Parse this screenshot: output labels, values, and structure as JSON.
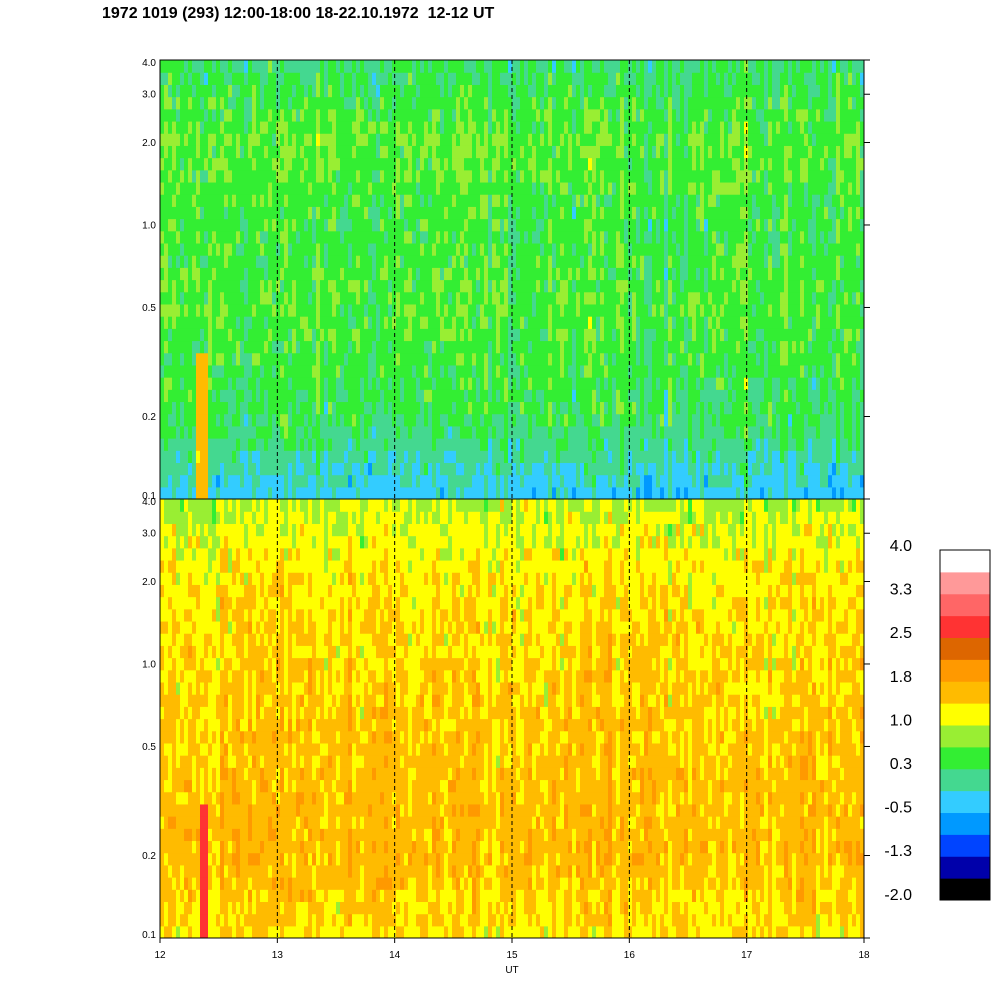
{
  "title": "1972 1019 (293) 12:00-18:00 18-22.10.1972  12-12 UT",
  "chart_data": [
    {
      "type": "heatmap",
      "panel": "upper",
      "x": {
        "label": "",
        "range": [
          12,
          18
        ],
        "ticks": []
      },
      "y": {
        "scale": "log",
        "range": [
          0.1,
          4.0
        ],
        "ticks": [
          0.1,
          0.2,
          0.5,
          1.0,
          2.0,
          3.0,
          4.0
        ],
        "tick_labels": [
          "0.1",
          "0.2",
          "0.5",
          "1.0",
          "2.0",
          "3.0",
          "4.0"
        ]
      },
      "vertical_markers": [
        13,
        14,
        15,
        16,
        17
      ],
      "typical_level_by_y": [
        {
          "y": 0.1,
          "value": -0.3
        },
        {
          "y": 0.2,
          "value": 0.3
        },
        {
          "y": 0.5,
          "value": 0.5
        },
        {
          "y": 1.0,
          "value": 0.4
        },
        {
          "y": 2.0,
          "value": 0.6
        },
        {
          "y": 4.0,
          "value": 0.2
        }
      ],
      "features": [
        {
          "x_start": 12.32,
          "x_end": 12.42,
          "y_max": 0.35,
          "value": 1.5
        }
      ]
    },
    {
      "type": "heatmap",
      "panel": "lower",
      "x": {
        "label": "UT",
        "range": [
          12,
          18
        ],
        "ticks": [
          12,
          13,
          14,
          15,
          16,
          17,
          18
        ],
        "tick_labels": [
          "12",
          "13",
          "14",
          "15",
          "16",
          "17",
          "18"
        ]
      },
      "y": {
        "scale": "log",
        "range": [
          0.1,
          4.0
        ],
        "ticks": [
          0.1,
          0.2,
          0.5,
          1.0,
          2.0,
          3.0,
          4.0
        ],
        "tick_labels": [
          "0.1",
          "0.2",
          "0.5",
          "1.0",
          "2.0",
          "3.0",
          "4.0"
        ]
      },
      "vertical_markers": [
        13,
        14,
        15,
        16,
        17
      ],
      "typical_level_by_y": [
        {
          "y": 0.1,
          "value": 1.3
        },
        {
          "y": 0.2,
          "value": 1.6
        },
        {
          "y": 0.5,
          "value": 1.5
        },
        {
          "y": 1.0,
          "value": 1.4
        },
        {
          "y": 2.0,
          "value": 1.3
        },
        {
          "y": 3.0,
          "value": 1.1
        },
        {
          "y": 4.0,
          "value": 0.9
        }
      ],
      "features": [
        {
          "x_start": 12.33,
          "x_end": 12.42,
          "y_max": 0.3,
          "value": 2.6
        }
      ]
    }
  ],
  "colorbar": {
    "labels": [
      "4.0",
      "3.3",
      "2.5",
      "1.8",
      "1.0",
      "0.3",
      "-0.5",
      "-1.3",
      "-2.0"
    ],
    "colors": [
      "#000000",
      "#0000aa",
      "#0044ff",
      "#0099ff",
      "#33ccff",
      "#44d890",
      "#33ee33",
      "#99ee33",
      "#ffff00",
      "#ffbb00",
      "#ff9900",
      "#dd6600",
      "#ff3333",
      "#ff6666",
      "#ff9999",
      "#ffffff"
    ]
  }
}
